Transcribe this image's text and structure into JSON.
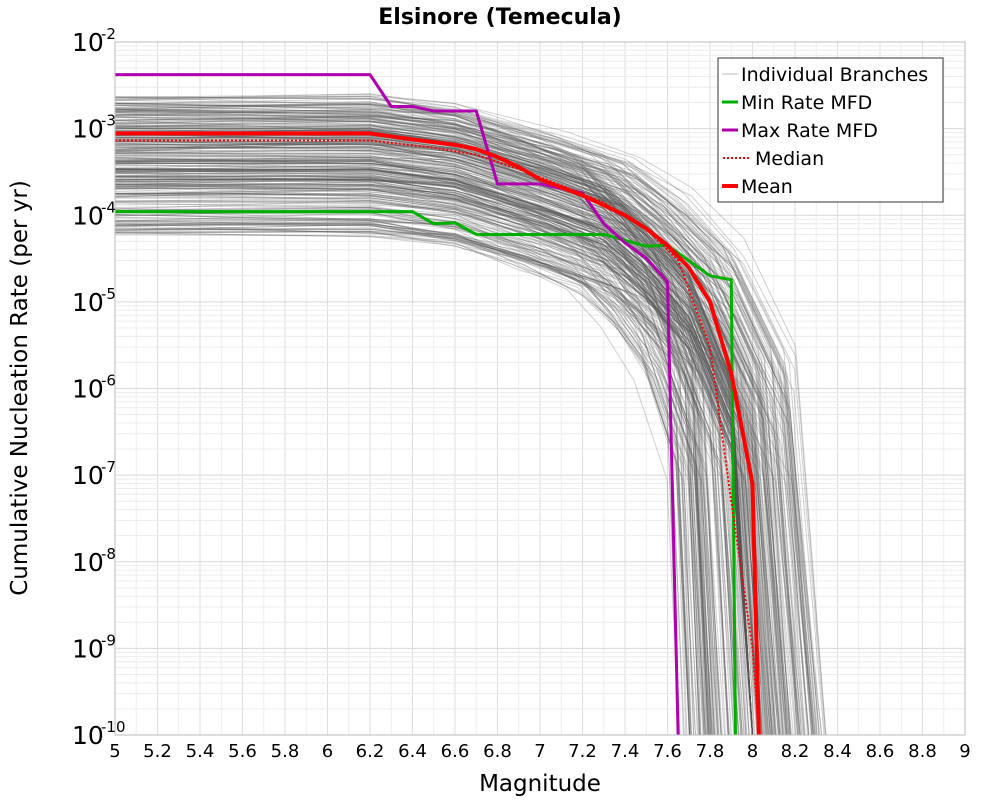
{
  "chart_data": {
    "type": "line",
    "title": "Elsinore (Temecula)",
    "xlabel": "Magnitude",
    "ylabel": "Cumulative Nucleation Rate (per yr)",
    "xlim": [
      5,
      9
    ],
    "ylim": [
      1e-10,
      0.01
    ],
    "y_scale": "log",
    "grid": true,
    "legend_position": "top-right",
    "x_ticks": [
      "5",
      "5.2",
      "5.4",
      "5.6",
      "5.8",
      "6",
      "6.2",
      "6.4",
      "6.6",
      "6.8",
      "7",
      "7.2",
      "7.4",
      "7.6",
      "7.8",
      "8",
      "8.2",
      "8.4",
      "8.6",
      "8.8",
      "9"
    ],
    "y_ticks": [
      {
        "base": "10",
        "exp": "-2"
      },
      {
        "base": "10",
        "exp": "-3"
      },
      {
        "base": "10",
        "exp": "-4"
      },
      {
        "base": "10",
        "exp": "-5"
      },
      {
        "base": "10",
        "exp": "-6"
      },
      {
        "base": "10",
        "exp": "-7"
      },
      {
        "base": "10",
        "exp": "-8"
      },
      {
        "base": "10",
        "exp": "-9"
      },
      {
        "base": "10",
        "exp": "-10"
      }
    ],
    "series": [
      {
        "name": "Individual Branches",
        "color": "#555555",
        "style": "thin",
        "x": [
          5.0,
          6.2,
          6.6,
          7.0,
          7.3,
          7.5,
          7.7,
          7.9,
          8.0
        ],
        "values": [
          0.0004,
          0.0004,
          0.0003,
          0.00015,
          8e-05,
          3e-05,
          8e-06,
          5e-07,
          1e-10
        ]
      },
      {
        "name": "Min Rate MFD",
        "color": "#00b000",
        "style": "solid",
        "x": [
          5.0,
          6.2,
          6.4,
          6.5,
          6.6,
          6.7,
          7.3,
          7.5,
          7.6,
          7.8,
          7.9,
          7.92
        ],
        "values": [
          0.00011,
          0.00011,
          0.00011,
          8e-05,
          8.2e-05,
          6e-05,
          6e-05,
          4.4e-05,
          4.5e-05,
          2e-05,
          1.8e-05,
          1e-10
        ]
      },
      {
        "name": "Max Rate MFD",
        "color": "#b000b0",
        "style": "solid",
        "x": [
          5.0,
          6.2,
          6.3,
          6.4,
          6.5,
          6.6,
          6.7,
          6.8,
          7.0,
          7.2,
          7.3,
          7.4,
          7.5,
          7.6,
          7.65
        ],
        "values": [
          0.0042,
          0.0042,
          0.0018,
          0.0018,
          0.0016,
          0.0016,
          0.0016,
          0.00023,
          0.00023,
          0.00018,
          8e-05,
          4.8e-05,
          3.2e-05,
          1.7e-05,
          1e-10
        ]
      },
      {
        "name": "Median",
        "color": "#ff0000",
        "style": "dotted",
        "x": [
          5.0,
          6.2,
          6.5,
          6.7,
          6.9,
          7.1,
          7.3,
          7.5,
          7.65,
          7.8,
          7.9,
          8.0,
          8.03
        ],
        "values": [
          0.00073,
          0.00073,
          0.0006,
          0.0005,
          0.00034,
          0.00022,
          0.00014,
          7e-05,
          3e-05,
          3e-06,
          5e-08,
          1e-09,
          1e-10
        ]
      },
      {
        "name": "Mean",
        "color": "#ff0000",
        "style": "thick",
        "x": [
          5.0,
          6.2,
          6.4,
          6.6,
          6.7,
          6.8,
          6.9,
          7.0,
          7.1,
          7.2,
          7.3,
          7.4,
          7.5,
          7.6,
          7.7,
          7.8,
          7.9,
          8.0,
          8.03
        ],
        "values": [
          0.00088,
          0.00088,
          0.00075,
          0.00065,
          0.00058,
          0.00047,
          0.00036,
          0.00026,
          0.00021,
          0.00017,
          0.00013,
          0.0001,
          7e-05,
          4.5e-05,
          2.5e-05,
          1e-05,
          1.5e-06,
          8e-08,
          1e-10
        ]
      }
    ]
  }
}
